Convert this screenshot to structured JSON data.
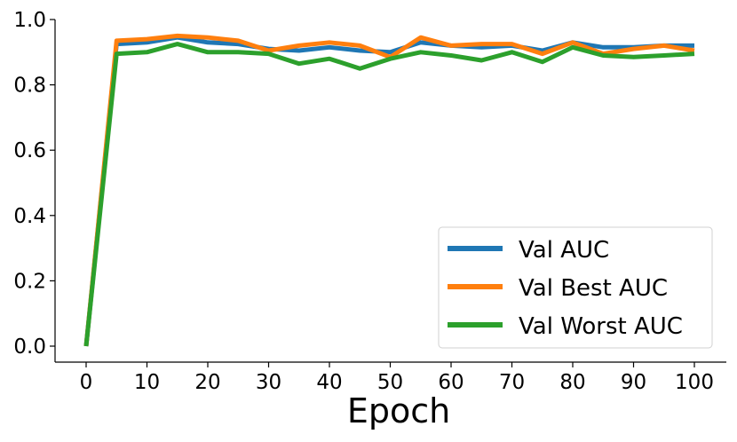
{
  "chart_data": {
    "type": "line",
    "title": "",
    "xlabel": "Epoch",
    "ylabel": "",
    "xlim": [
      -5,
      103
    ],
    "ylim": [
      -0.05,
      1.0
    ],
    "xticks": [
      0,
      10,
      20,
      30,
      40,
      50,
      60,
      70,
      80,
      90,
      100
    ],
    "yticks": [
      0.0,
      0.2,
      0.4,
      0.6,
      0.8,
      1.0
    ],
    "xtick_labels": [
      "0",
      "10",
      "20",
      "30",
      "40",
      "50",
      "60",
      "70",
      "80",
      "90",
      "100"
    ],
    "ytick_labels": [
      "0.0",
      "0.2",
      "0.4",
      "0.6",
      "0.8",
      "1.0"
    ],
    "grid": false,
    "legend_position": "bottom-right",
    "x": [
      0,
      5,
      10,
      15,
      20,
      25,
      30,
      35,
      40,
      45,
      50,
      55,
      60,
      65,
      70,
      75,
      80,
      85,
      90,
      95,
      100
    ],
    "series": [
      {
        "name": "Val AUC",
        "color": "#1f77b4",
        "values": [
          0.0,
          0.925,
          0.93,
          0.945,
          0.93,
          0.925,
          0.91,
          0.905,
          0.915,
          0.905,
          0.9,
          0.93,
          0.92,
          0.915,
          0.92,
          0.905,
          0.93,
          0.915,
          0.915,
          0.92,
          0.92
        ]
      },
      {
        "name": "Val Best AUC",
        "color": "#ff7f0e",
        "values": [
          0.0,
          0.935,
          0.94,
          0.95,
          0.945,
          0.935,
          0.905,
          0.92,
          0.93,
          0.92,
          0.885,
          0.945,
          0.92,
          0.925,
          0.925,
          0.895,
          0.93,
          0.895,
          0.91,
          0.92,
          0.905
        ]
      },
      {
        "name": "Val Worst AUC",
        "color": "#2ca02c",
        "values": [
          0.0,
          0.895,
          0.9,
          0.925,
          0.9,
          0.9,
          0.895,
          0.865,
          0.88,
          0.85,
          0.88,
          0.9,
          0.89,
          0.875,
          0.9,
          0.87,
          0.915,
          0.89,
          0.885,
          0.89,
          0.895
        ]
      }
    ]
  }
}
